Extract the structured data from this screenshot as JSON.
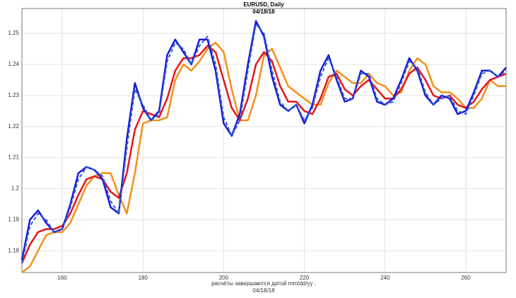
{
  "chart_data": {
    "type": "line",
    "title": "EURUSD,          Daily",
    "subtitle": "04/18/18",
    "x_label": "расчёты  завершаются  датой   mm/dd/yy :",
    "x_label_2": "04/18/18",
    "x": [
      150,
      152,
      154,
      156,
      158,
      160,
      162,
      164,
      166,
      168,
      170,
      172,
      174,
      176,
      178,
      180,
      182,
      184,
      186,
      188,
      190,
      192,
      194,
      196,
      198,
      200,
      202,
      204,
      206,
      208,
      210,
      212,
      214,
      216,
      218,
      220,
      222,
      224,
      226,
      228,
      230,
      232,
      234,
      236,
      238,
      240,
      242,
      244,
      246,
      248,
      250,
      252,
      254,
      256,
      258,
      260,
      262,
      264,
      266,
      268,
      270
    ],
    "series": [
      {
        "color": "#f39019",
        "width": 2.5,
        "dashed": false,
        "values": [
          1.173,
          1.175,
          1.18,
          1.185,
          1.186,
          1.186,
          1.189,
          1.195,
          1.201,
          1.204,
          1.205,
          1.205,
          1.198,
          1.192,
          1.205,
          1.221,
          1.222,
          1.222,
          1.223,
          1.235,
          1.24,
          1.238,
          1.241,
          1.245,
          1.247,
          1.244,
          1.232,
          1.222,
          1.222,
          1.23,
          1.243,
          1.245,
          1.239,
          1.233,
          1.231,
          1.229,
          1.227,
          1.227,
          1.234,
          1.238,
          1.236,
          1.234,
          1.234,
          1.237,
          1.234,
          1.233,
          1.23,
          1.231,
          1.238,
          1.242,
          1.24,
          1.233,
          1.231,
          1.231,
          1.229,
          1.226,
          1.226,
          1.229,
          1.235,
          1.233,
          1.233
        ]
      },
      {
        "color": "#e8141b",
        "width": 2.5,
        "dashed": false,
        "values": [
          1.176,
          1.182,
          1.186,
          1.187,
          1.187,
          1.188,
          1.192,
          1.198,
          1.203,
          1.204,
          1.203,
          1.199,
          1.197,
          1.205,
          1.219,
          1.225,
          1.224,
          1.223,
          1.229,
          1.238,
          1.242,
          1.242,
          1.243,
          1.246,
          1.244,
          1.235,
          1.226,
          1.222,
          1.229,
          1.24,
          1.244,
          1.241,
          1.233,
          1.228,
          1.228,
          1.225,
          1.224,
          1.229,
          1.236,
          1.237,
          1.232,
          1.23,
          1.233,
          1.235,
          1.232,
          1.229,
          1.229,
          1.232,
          1.237,
          1.239,
          1.235,
          1.23,
          1.229,
          1.23,
          1.227,
          1.226,
          1.228,
          1.232,
          1.235,
          1.236,
          1.237
        ]
      },
      {
        "color": "#1a1ad6",
        "width": 2.5,
        "dashed": false,
        "values": [
          1.177,
          1.19,
          1.193,
          1.189,
          1.186,
          1.187,
          1.195,
          1.205,
          1.207,
          1.206,
          1.203,
          1.194,
          1.192,
          1.216,
          1.234,
          1.226,
          1.222,
          1.225,
          1.243,
          1.248,
          1.244,
          1.24,
          1.248,
          1.248,
          1.238,
          1.221,
          1.217,
          1.224,
          1.24,
          1.254,
          1.249,
          1.236,
          1.227,
          1.225,
          1.227,
          1.221,
          1.227,
          1.238,
          1.243,
          1.235,
          1.228,
          1.229,
          1.238,
          1.236,
          1.228,
          1.227,
          1.229,
          1.235,
          1.242,
          1.238,
          1.23,
          1.227,
          1.23,
          1.229,
          1.224,
          1.225,
          1.231,
          1.238,
          1.238,
          1.236,
          1.239
        ]
      },
      {
        "color": "#2a5fd0",
        "width": 2,
        "dashed": true,
        "values": [
          1.176,
          1.188,
          1.192,
          1.19,
          1.186,
          1.187,
          1.194,
          1.203,
          1.207,
          1.206,
          1.204,
          1.196,
          1.192,
          1.213,
          1.232,
          1.227,
          1.222,
          1.224,
          1.241,
          1.247,
          1.245,
          1.24,
          1.246,
          1.249,
          1.24,
          1.223,
          1.217,
          1.222,
          1.238,
          1.253,
          1.25,
          1.238,
          1.228,
          1.225,
          1.227,
          1.222,
          1.226,
          1.236,
          1.242,
          1.236,
          1.229,
          1.229,
          1.237,
          1.237,
          1.229,
          1.227,
          1.228,
          1.234,
          1.241,
          1.239,
          1.231,
          1.227,
          1.229,
          1.23,
          1.225,
          1.224,
          1.23,
          1.237,
          1.238,
          1.236,
          1.238
        ]
      }
    ],
    "xlim": [
      150,
      270
    ],
    "xticks": [
      160,
      180,
      200,
      220,
      240,
      260
    ],
    "ylim": [
      1.173,
      1.258
    ],
    "yticks": [
      1.18,
      1.19,
      1.2,
      1.21,
      1.22,
      1.23,
      1.24,
      1.25
    ],
    "grid": true
  }
}
